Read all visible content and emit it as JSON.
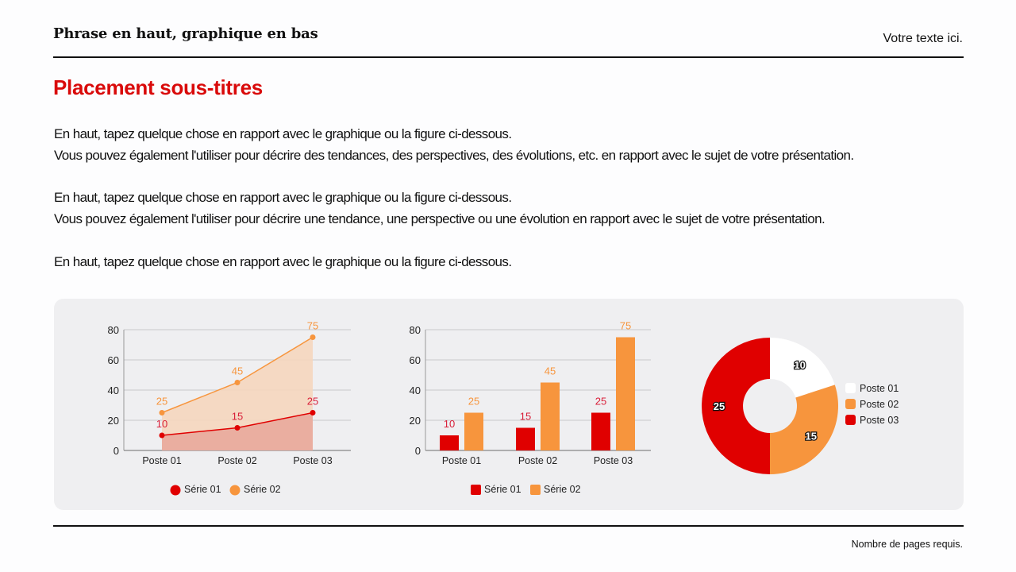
{
  "header": {
    "title": "Phrase en haut, graphique en bas",
    "right_text": "Votre texte ici."
  },
  "subtitle": "Placement sous-titres",
  "paragraphs": [
    {
      "line1": "En haut, tapez quelque chose en rapport avec le graphique ou la figure ci-dessous.",
      "line2": "Vous pouvez également l'utiliser pour décrire des tendances, des perspectives, des évolutions, etc. en rapport avec le sujet de votre présentation."
    },
    {
      "line1": "En haut, tapez quelque chose en rapport avec le graphique ou la figure ci-dessous.",
      "line2": "Vous pouvez également l'utiliser pour décrire une tendance, une perspective ou une évolution en rapport avec le sujet de votre présentation."
    },
    {
      "line1": "En haut, tapez quelque chose en rapport avec le graphique ou la figure ci-dessous."
    }
  ],
  "footer": {
    "page_text": "Nombre de pages requis."
  },
  "colors": {
    "accent_red": "#d90a0a",
    "series01": "#e00000",
    "series02": "#f7953d",
    "poste01": "#ffffff",
    "panel_bg": "#efeff1"
  },
  "chart_data": [
    {
      "type": "area",
      "categories": [
        "Poste 01",
        "Poste 02",
        "Poste 03"
      ],
      "series": [
        {
          "name": "Série 01",
          "values": [
            10,
            15,
            25
          ],
          "color": "#e00000"
        },
        {
          "name": "Série 02",
          "values": [
            25,
            45,
            75
          ],
          "color": "#f7953d"
        }
      ],
      "yticks": [
        "0",
        "20",
        "40",
        "60",
        "80"
      ],
      "ylim": [
        0,
        80
      ],
      "grid": true,
      "legend_position": "bottom",
      "data_labels": true
    },
    {
      "type": "bar",
      "categories": [
        "Poste 01",
        "Poste 02",
        "Poste 03"
      ],
      "series": [
        {
          "name": "Série 01",
          "values": [
            10,
            15,
            25
          ],
          "color": "#e00000"
        },
        {
          "name": "Série 02",
          "values": [
            25,
            45,
            75
          ],
          "color": "#f7953d"
        }
      ],
      "yticks": [
        "0",
        "20",
        "40",
        "60",
        "80"
      ],
      "ylim": [
        0,
        80
      ],
      "grid": true,
      "legend_position": "bottom",
      "data_labels": true
    },
    {
      "type": "pie",
      "style": "donut",
      "categories": [
        "Poste 01",
        "Poste 02",
        "Poste 03"
      ],
      "values": [
        10,
        15,
        25
      ],
      "colors": [
        "#ffffff",
        "#f7953d",
        "#e00000"
      ],
      "labels": [
        "10",
        "15",
        "25"
      ],
      "legend_position": "right"
    }
  ]
}
